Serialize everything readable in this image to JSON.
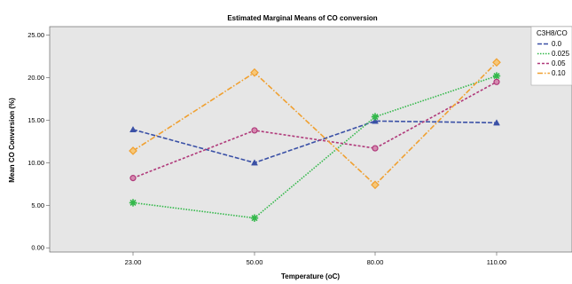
{
  "chart_data": {
    "type": "line",
    "title": "Estimated Marginal Means of CO conversion",
    "xlabel": "Temperature (oC)",
    "ylabel": "Mean CO Conversion (%)",
    "categories": [
      "23.00",
      "50.00",
      "80.00",
      "110.00"
    ],
    "y_ticks": [
      "0.00",
      "5.00",
      "10.00",
      "15.00",
      "20.00",
      "25.00"
    ],
    "ylim": [
      -0.5,
      26
    ],
    "grid": false,
    "legend": {
      "title": "C3H8/CO",
      "position": "top-right"
    },
    "series": [
      {
        "name": "0.0",
        "values": [
          13.9,
          10.0,
          14.9,
          14.7
        ],
        "color": "#3a50a6",
        "dash": "5,2",
        "marker": "triangle"
      },
      {
        "name": "0.025",
        "values": [
          5.3,
          3.5,
          15.4,
          20.2
        ],
        "color": "#33b84a",
        "dash": "1.5,1.5",
        "marker": "star"
      },
      {
        "name": "0.05",
        "values": [
          8.2,
          13.8,
          11.7,
          19.5
        ],
        "color": "#b0397a",
        "dash": "3,2",
        "marker": "circle"
      },
      {
        "name": "0.10",
        "values": [
          11.4,
          20.6,
          7.4,
          21.8
        ],
        "color": "#f0a030",
        "dash": "6,2,1.5,2",
        "marker": "diamond"
      }
    ]
  }
}
